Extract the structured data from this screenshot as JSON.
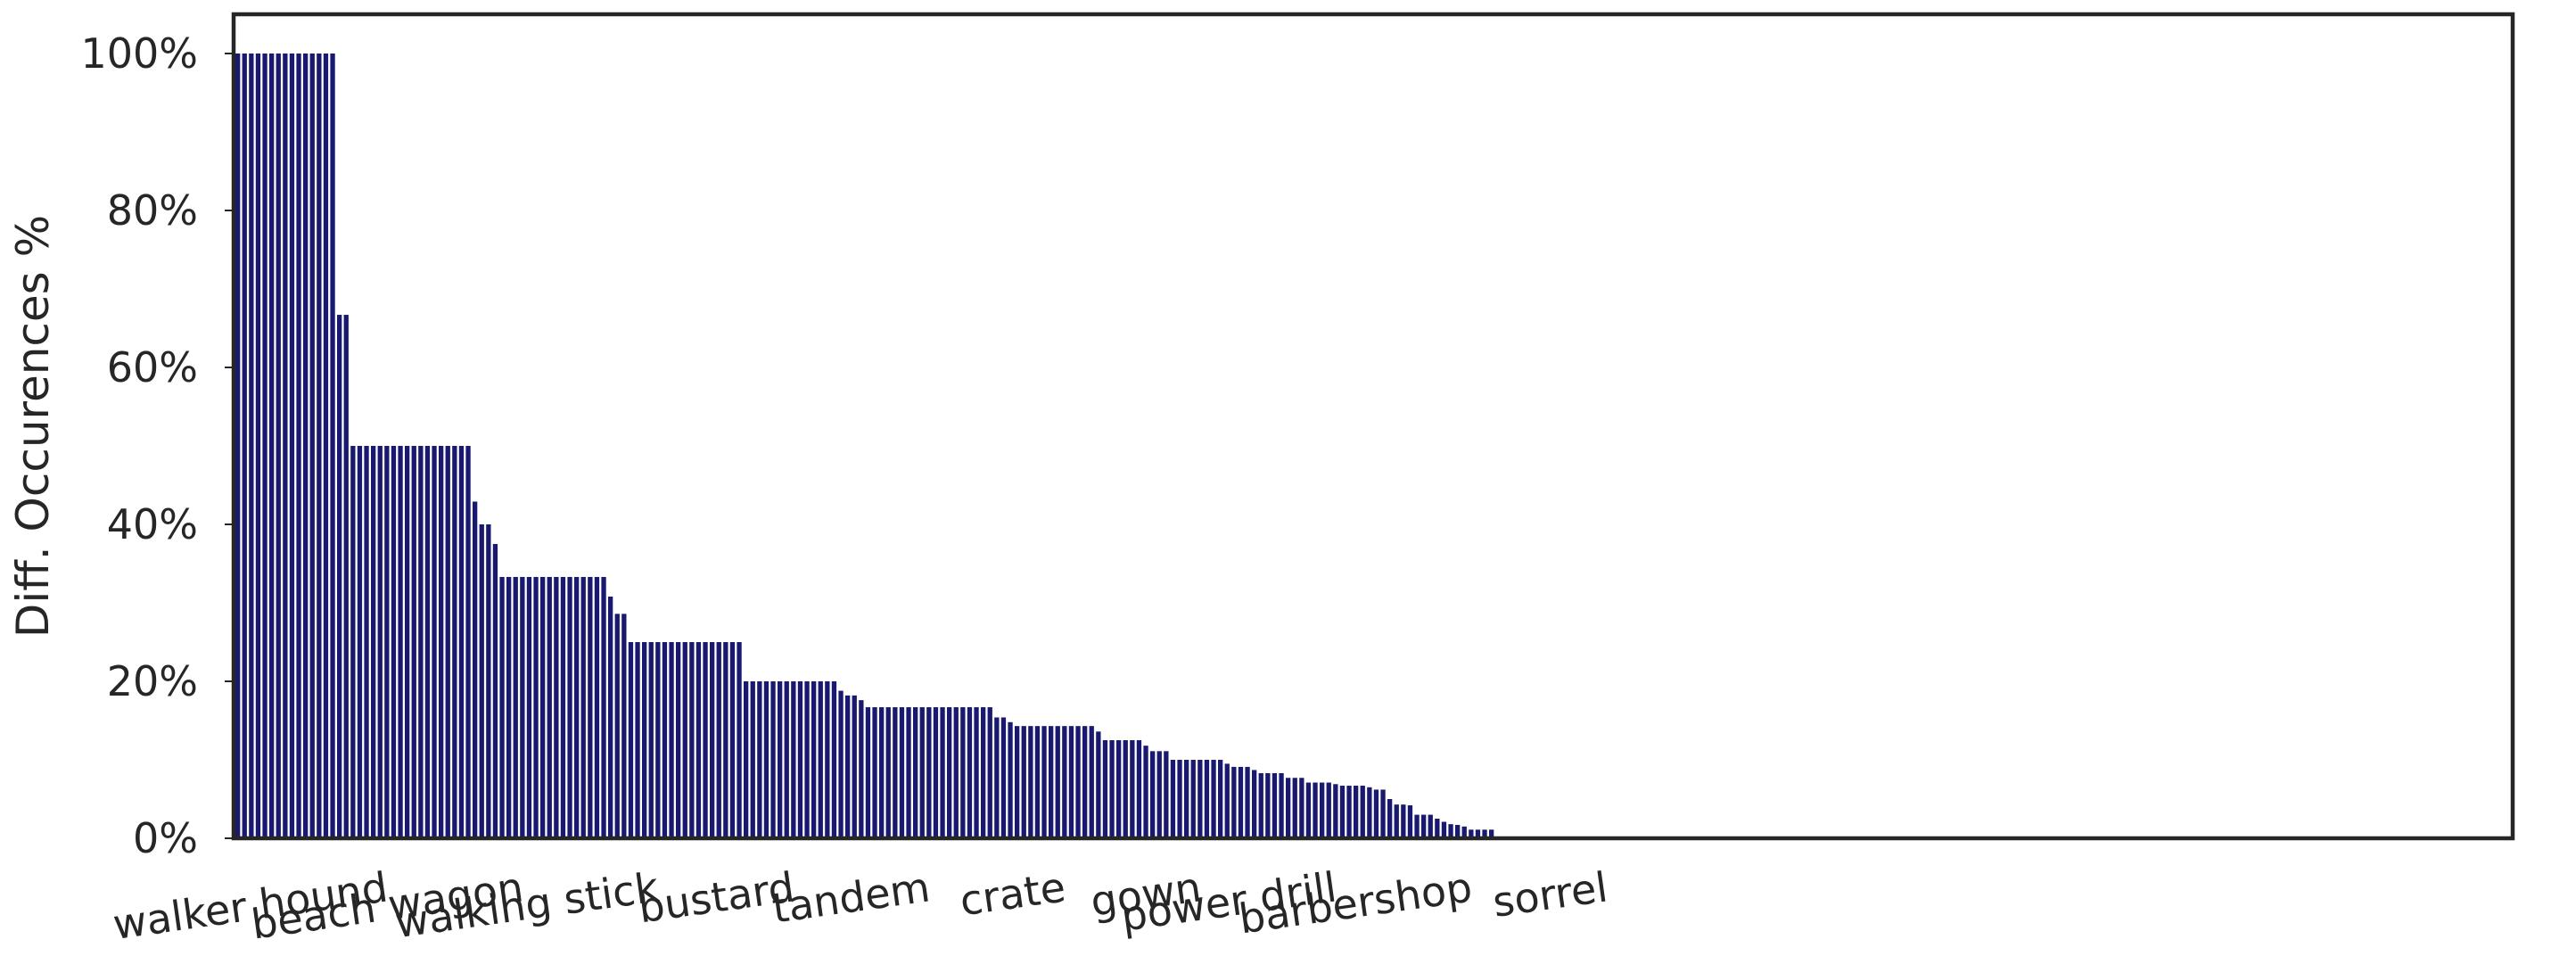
{
  "chart_data": {
    "type": "bar",
    "title": "",
    "xlabel": "",
    "ylabel": "Diff. Occurences %",
    "ylim": [
      0,
      105
    ],
    "yticks": [
      0,
      20,
      40,
      60,
      80,
      100
    ],
    "ytick_labels": [
      "0%",
      "20%",
      "40%",
      "60%",
      "80%",
      "100%"
    ],
    "grid": false,
    "legend": "none",
    "bar_color": "#191970",
    "axis_color": "#262626",
    "visible_category_labels": [
      {
        "index": 0,
        "label": "walker hound"
      },
      {
        "index": 20,
        "label": "beach wagon"
      },
      {
        "index": 40,
        "label": "walking stick"
      },
      {
        "index": 60,
        "label": "bustard"
      },
      {
        "index": 80,
        "label": "tandem"
      },
      {
        "index": 100,
        "label": "crate"
      },
      {
        "index": 120,
        "label": "gown"
      },
      {
        "index": 140,
        "label": "power drill"
      },
      {
        "index": 160,
        "label": "barbershop"
      },
      {
        "index": 180,
        "label": "sorrel"
      }
    ],
    "values": [
      100,
      100,
      100,
      100,
      100,
      100,
      100,
      100,
      100,
      100,
      100,
      100,
      100,
      100,
      100,
      66.7,
      66.7,
      50,
      50,
      50,
      50,
      50,
      50,
      50,
      50,
      50,
      50,
      50,
      50,
      50,
      50,
      50,
      50,
      50,
      50,
      42.9,
      40,
      40,
      37.5,
      33.3,
      33.3,
      33.3,
      33.3,
      33.3,
      33.3,
      33.3,
      33.3,
      33.3,
      33.3,
      33.3,
      33.3,
      33.3,
      33.3,
      33.3,
      33.3,
      30.8,
      28.6,
      28.6,
      25,
      25,
      25,
      25,
      25,
      25,
      25,
      25,
      25,
      25,
      25,
      25,
      25,
      25,
      25,
      25,
      25,
      20,
      20,
      20,
      20,
      20,
      20,
      20,
      20,
      20,
      20,
      20,
      20,
      20,
      20,
      18.8,
      18.2,
      18.2,
      17.6,
      16.7,
      16.7,
      16.7,
      16.7,
      16.7,
      16.7,
      16.7,
      16.7,
      16.7,
      16.7,
      16.7,
      16.7,
      16.7,
      16.7,
      16.7,
      16.7,
      16.7,
      16.7,
      16.7,
      15.4,
      15.4,
      14.8,
      14.3,
      14.3,
      14.3,
      14.3,
      14.3,
      14.3,
      14.3,
      14.3,
      14.3,
      14.3,
      14.3,
      14.3,
      13.6,
      12.5,
      12.5,
      12.5,
      12.5,
      12.5,
      12.5,
      11.8,
      11.1,
      11.1,
      11.1,
      10,
      10,
      10,
      10,
      10,
      10,
      10,
      10,
      9.5,
      9.1,
      9.1,
      9.1,
      8.7,
      8.3,
      8.3,
      8.3,
      8.3,
      7.7,
      7.7,
      7.7,
      7.1,
      7.1,
      7.1,
      7.1,
      6.9,
      6.7,
      6.7,
      6.7,
      6.7,
      6.5,
      6.2,
      6.2,
      5,
      4.3,
      4.3,
      4.2,
      3,
      3,
      3,
      2.5,
      2.1,
      1.8,
      1.7,
      1.5,
      1.1,
      1.1,
      1.1,
      1.1
    ]
  }
}
